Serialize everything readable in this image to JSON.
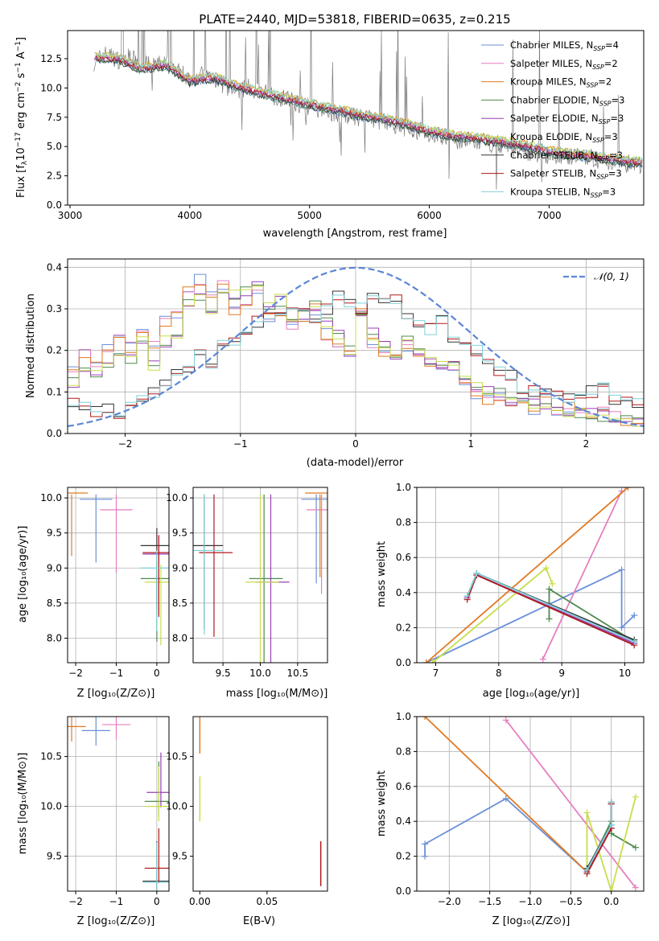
{
  "title": "PLATE=2440, MJD=53818, FIBERID=0635, z=0.215",
  "models": [
    {
      "name": "Chabrier MILES",
      "nssp": "4",
      "color": "#6a8fd8"
    },
    {
      "name": "Salpeter MILES",
      "nssp": "2",
      "color": "#e57fbf"
    },
    {
      "name": "Kroupa MILES",
      "nssp": "2",
      "color": "#e07a22"
    },
    {
      "name": "Chabrier ELODIE",
      "nssp": "3",
      "color": "#4f8a4f"
    },
    {
      "name": "Salpeter ELODIE",
      "nssp": "3",
      "color": "#9a3fb3"
    },
    {
      "name": "Kroupa ELODIE",
      "nssp": "3",
      "color": "#c8dd4a"
    },
    {
      "name": "Chabrier STELIB",
      "nssp": "3",
      "color": "#333333"
    },
    {
      "name": "Salpeter STELIB",
      "nssp": "3",
      "color": "#b01a1a"
    },
    {
      "name": "Kroupa STELIB",
      "nssp": "3",
      "color": "#7fd0d8"
    }
  ],
  "panels": {
    "spectrum": {
      "xlabel": "wavelength [Angstrom, rest frame]",
      "ylabel_main": "Flux [f",
      "ylabel_rest": "10",
      "ylabel_exp": "−17",
      "ylabel_units": " erg cm",
      "xticks": [
        "3000",
        "4000",
        "5000",
        "6000",
        "7000"
      ],
      "yticks": [
        "0.0",
        "2.5",
        "5.0",
        "7.5",
        "10.0",
        "12.5"
      ]
    },
    "residuals": {
      "xlabel": "(data-model)/error",
      "ylabel": "Normed distribution",
      "legend": "𝒩(0, 1)",
      "xticks": [
        "−2",
        "−1",
        "0",
        "1",
        "2"
      ],
      "yticks": [
        "0.0",
        "0.1",
        "0.2",
        "0.3",
        "0.4"
      ]
    },
    "age_vs_z": {
      "xlabel": "Z [log₁₀(Z/Z⊙)]",
      "ylabel": "age  [log₁₀(age/yr)]",
      "xticks": [
        "−2",
        "−1",
        "0"
      ],
      "yticks": [
        "8.0",
        "8.5",
        "9.0",
        "9.5",
        "10.0"
      ]
    },
    "age_vs_mass": {
      "xlabel": "mass [log₁₀(M/M⊙)]",
      "xticks": [
        "9.5",
        "10.0",
        "10.5"
      ],
      "yticks": [
        "8.0",
        "8.5",
        "9.0",
        "9.5",
        "10.0"
      ]
    },
    "weight_vs_age": {
      "xlabel": "age  [log₁₀(age/yr)]",
      "ylabel": "mass weight",
      "xticks": [
        "7",
        "8",
        "9",
        "10"
      ],
      "yticks": [
        "0.0",
        "0.2",
        "0.4",
        "0.6",
        "0.8",
        "1.0"
      ]
    },
    "mass_vs_z": {
      "xlabel": "Z [log₁₀(Z/Z⊙)]",
      "ylabel": "mass [log₁₀(M/M⊙)]",
      "xticks": [
        "−2",
        "−1",
        "0"
      ],
      "yticks": [
        "9.5",
        "10.0",
        "10.5"
      ]
    },
    "mass_vs_ebv": {
      "xlabel": "E(B-V)",
      "xticks": [
        "0.00",
        "0.05"
      ],
      "yticks": [
        "9.5",
        "10.0",
        "10.5"
      ]
    },
    "weight_vs_z": {
      "xlabel": "Z [log₁₀(Z/Z⊙)]",
      "ylabel": "mass weight",
      "xticks": [
        "−2.0",
        "−1.5",
        "−1.0",
        "−0.5",
        "0.0"
      ],
      "yticks": [
        "0.0",
        "0.2",
        "0.4",
        "0.6",
        "0.8",
        "1.0"
      ]
    }
  },
  "chart_data": [
    {
      "type": "line",
      "title": "PLATE=2440, MJD=53818, FIBERID=0635, z=0.215",
      "xlabel": "wavelength [Angstrom, rest frame]",
      "ylabel": "Flux [f_λ 10^-17 erg cm^-2 s^-1 A^-1]",
      "xlim": [
        2980,
        7790
      ],
      "ylim": [
        0,
        14.9
      ],
      "grid": false,
      "legend": "top-right",
      "data_x": [
        3200,
        3300,
        3400,
        3500,
        3600,
        3700,
        3800,
        3900,
        4000,
        4100,
        4200,
        4300,
        4400,
        4500,
        4600,
        4700,
        4800,
        4900,
        5000,
        5200,
        5400,
        5600,
        5800,
        6000,
        6200,
        6400,
        6600,
        6800,
        7000,
        7200,
        7400,
        7600,
        7780
      ],
      "data_y": [
        12.2,
        12.9,
        12.4,
        12.6,
        12.0,
        11.9,
        12.1,
        11.5,
        10.8,
        11.1,
        10.9,
        10.1,
        9.8,
        10.0,
        9.7,
        9.3,
        9.1,
        8.7,
        8.4,
        7.9,
        7.5,
        7.2,
        6.6,
        6.1,
        5.6,
        5.4,
        5.2,
        4.6,
        4.2,
        4.2,
        3.9,
        3.6,
        3.4
      ],
      "model_x": [
        3200,
        3400,
        3600,
        3800,
        4000,
        4200,
        4400,
        4600,
        4800,
        5000,
        5200,
        5400,
        5600,
        5800,
        6000,
        6200,
        6400,
        6600,
        6800,
        7000,
        7200,
        7400,
        7600,
        7780
      ],
      "model_y": [
        12.6,
        12.5,
        11.6,
        12.0,
        10.6,
        10.9,
        10.1,
        9.6,
        9.1,
        8.6,
        8.2,
        7.7,
        7.4,
        6.9,
        6.3,
        5.9,
        5.7,
        5.4,
        5.1,
        4.6,
        4.3,
        4.1,
        3.8,
        3.6
      ]
    },
    {
      "type": "line",
      "xlabel": "(data-model)/error",
      "ylabel": "Normed distribution",
      "xlim": [
        -2.5,
        2.5
      ],
      "ylim": [
        0,
        0.42
      ],
      "grid": true,
      "legend": "top-right",
      "gaussian": {
        "name": "𝒩(0, 1)",
        "mu": 0,
        "sigma": 1
      },
      "bins": [
        -2.5,
        -2.4,
        -2.3,
        -2.2,
        -2.1,
        -2.0,
        -1.9,
        -1.8,
        -1.7,
        -1.6,
        -1.5,
        -1.4,
        -1.3,
        -1.2,
        -1.1,
        -1.0,
        -0.9,
        -0.8,
        -0.7,
        -0.6,
        -0.5,
        -0.4,
        -0.3,
        -0.2,
        -0.1,
        0.0,
        0.1,
        0.2,
        0.3,
        0.4,
        0.5,
        0.6,
        0.7,
        0.8,
        0.9,
        1.0,
        1.1,
        1.2,
        1.3,
        1.4,
        1.5,
        1.6,
        1.7,
        1.8,
        1.9,
        2.0,
        2.1,
        2.2,
        2.3,
        2.4
      ],
      "series": [
        {
          "name": "MILES",
          "values": [
            0.15,
            0.19,
            0.17,
            0.2,
            0.23,
            0.21,
            0.25,
            0.22,
            0.27,
            0.28,
            0.34,
            0.37,
            0.33,
            0.36,
            0.3,
            0.31,
            0.35,
            0.28,
            0.29,
            0.26,
            0.27,
            0.3,
            0.24,
            0.21,
            0.19,
            0.29,
            0.22,
            0.2,
            0.18,
            0.21,
            0.19,
            0.17,
            0.15,
            0.16,
            0.11,
            0.09,
            0.08,
            0.09,
            0.08,
            0.07,
            0.06,
            0.08,
            0.05,
            0.06,
            0.05,
            0.04,
            0.05,
            0.04,
            0.03,
            0.02
          ]
        },
        {
          "name": "ELODIE",
          "values": [
            0.12,
            0.16,
            0.14,
            0.17,
            0.19,
            0.18,
            0.23,
            0.16,
            0.22,
            0.24,
            0.31,
            0.33,
            0.3,
            0.35,
            0.33,
            0.34,
            0.36,
            0.31,
            0.32,
            0.28,
            0.29,
            0.31,
            0.27,
            0.24,
            0.2,
            0.28,
            0.24,
            0.21,
            0.19,
            0.22,
            0.2,
            0.18,
            0.17,
            0.17,
            0.13,
            0.11,
            0.1,
            0.1,
            0.08,
            0.09,
            0.07,
            0.06,
            0.06,
            0.05,
            0.05,
            0.05,
            0.04,
            0.04,
            0.03,
            0.03
          ]
        },
        {
          "name": "STELIB",
          "values": [
            0.07,
            0.07,
            0.05,
            0.06,
            0.05,
            0.07,
            0.09,
            0.1,
            0.12,
            0.15,
            0.16,
            0.19,
            0.16,
            0.21,
            0.22,
            0.25,
            0.27,
            0.28,
            0.3,
            0.31,
            0.29,
            0.27,
            0.3,
            0.33,
            0.32,
            0.3,
            0.33,
            0.31,
            0.32,
            0.29,
            0.27,
            0.25,
            0.27,
            0.23,
            0.22,
            0.2,
            0.17,
            0.15,
            0.14,
            0.11,
            0.1,
            0.1,
            0.09,
            0.09,
            0.08,
            0.1,
            0.11,
            0.08,
            0.08,
            0.07
          ]
        }
      ]
    },
    {
      "type": "scatter",
      "xlabel": "Z [log10(Z/Z_sun)]",
      "ylabel": "age [log10(age/yr)]",
      "xlim": [
        -2.2,
        0.3
      ],
      "ylim": [
        7.65,
        10.15
      ],
      "points": [
        {
          "model": "Chabrier MILES",
          "x": -1.5,
          "y": 9.98
        },
        {
          "model": "Salpeter MILES",
          "x": -1.0,
          "y": 9.83
        },
        {
          "model": "Kroupa MILES",
          "x": -2.1,
          "y": 10.07
        },
        {
          "model": "Chabrier ELODIE",
          "x": 0.0,
          "y": 8.85
        },
        {
          "model": "Salpeter ELODIE",
          "x": 0.05,
          "y": 9.2
        },
        {
          "model": "Kroupa ELODIE",
          "x": 0.1,
          "y": 8.8
        },
        {
          "model": "Chabrier STELIB",
          "x": 0.0,
          "y": 9.32
        },
        {
          "model": "Salpeter STELIB",
          "x": 0.05,
          "y": 9.22
        },
        {
          "model": "Kroupa STELIB",
          "x": 0.0,
          "y": 9.0
        }
      ]
    },
    {
      "type": "scatter",
      "xlabel": "mass [log10(M/M_sun)]",
      "ylabel": "age [log10(age/yr)]",
      "xlim": [
        9.1,
        10.9
      ],
      "ylim": [
        7.65,
        10.15
      ],
      "points": [
        {
          "model": "Chabrier MILES",
          "x": 10.75,
          "y": 9.98
        },
        {
          "model": "Salpeter MILES",
          "x": 10.82,
          "y": 9.83
        },
        {
          "model": "Kroupa MILES",
          "x": 10.8,
          "y": 10.07
        },
        {
          "model": "Chabrier ELODIE",
          "x": 10.05,
          "y": 8.85
        },
        {
          "model": "Salpeter ELODIE",
          "x": 10.14,
          "y": 8.8
        },
        {
          "model": "Kroupa ELODIE",
          "x": 10.0,
          "y": 8.8
        },
        {
          "model": "Chabrier STELIB",
          "x": 9.25,
          "y": 9.32
        },
        {
          "model": "Salpeter STELIB",
          "x": 9.38,
          "y": 9.22
        },
        {
          "model": "Kroupa STELIB",
          "x": 9.25,
          "y": 9.25
        }
      ]
    },
    {
      "type": "line",
      "xlabel": "age [log10(age/yr)]",
      "ylabel": "mass weight",
      "xlim": [
        6.7,
        10.3
      ],
      "ylim": [
        0,
        1
      ],
      "grid": true,
      "series": [
        {
          "name": "Chabrier MILES",
          "x": [
            10.15,
            9.95,
            9.95,
            6.85
          ],
          "y": [
            0.27,
            0.2,
            0.53,
            0.0
          ]
        },
        {
          "name": "Salpeter MILES",
          "x": [
            8.7,
            9.95
          ],
          "y": [
            0.02,
            0.98
          ]
        },
        {
          "name": "Kroupa MILES",
          "x": [
            6.85,
            10.05
          ],
          "y": [
            0.0,
            1.0
          ]
        },
        {
          "name": "Chabrier ELODIE",
          "x": [
            8.8,
            8.8,
            10.15
          ],
          "y": [
            0.25,
            0.42,
            0.12
          ]
        },
        {
          "name": "Salpeter ELODIE",
          "x": [
            7.5,
            7.65,
            10.15
          ],
          "y": [
            0.37,
            0.5,
            0.11
          ]
        },
        {
          "name": "Kroupa ELODIE",
          "x": [
            6.95,
            8.75,
            8.85
          ],
          "y": [
            0.0,
            0.54,
            0.45
          ]
        },
        {
          "name": "Chabrier STELIB",
          "x": [
            7.5,
            7.65,
            10.15
          ],
          "y": [
            0.38,
            0.51,
            0.13
          ]
        },
        {
          "name": "Salpeter STELIB",
          "x": [
            7.5,
            7.65,
            10.15
          ],
          "y": [
            0.36,
            0.5,
            0.1
          ]
        },
        {
          "name": "Kroupa STELIB",
          "x": [
            7.5,
            7.65,
            10.15
          ],
          "y": [
            0.38,
            0.51,
            0.12
          ]
        }
      ]
    },
    {
      "type": "scatter",
      "xlabel": "Z [log10(Z/Z_sun)]",
      "ylabel": "mass [log10(M/M_sun)]",
      "xlim": [
        -2.2,
        0.3
      ],
      "ylim": [
        9.15,
        10.9
      ],
      "points": [
        {
          "model": "Chabrier MILES",
          "x": -1.5,
          "y": 10.76
        },
        {
          "model": "Salpeter MILES",
          "x": -1.0,
          "y": 10.82
        },
        {
          "model": "Kroupa MILES",
          "x": -2.1,
          "y": 10.8
        },
        {
          "model": "Chabrier ELODIE",
          "x": 0.05,
          "y": 10.05
        },
        {
          "model": "Salpeter ELODIE",
          "x": 0.1,
          "y": 10.14
        },
        {
          "model": "Kroupa ELODIE",
          "x": 0.05,
          "y": 10.0
        },
        {
          "model": "Chabrier STELIB",
          "x": 0.0,
          "y": 9.25
        },
        {
          "model": "Salpeter STELIB",
          "x": 0.05,
          "y": 9.38
        },
        {
          "model": "Kroupa STELIB",
          "x": 0.0,
          "y": 9.24
        }
      ]
    },
    {
      "type": "scatter",
      "xlabel": "E(B-V)",
      "ylabel": "mass [log10(M/M_sun)]",
      "xlim": [
        -0.005,
        0.095
      ],
      "ylim": [
        9.15,
        10.9
      ],
      "points": [
        {
          "model": "MILES",
          "x": 0.0,
          "y": 10.78
        },
        {
          "model": "ELODIE",
          "x": 0.0,
          "y": 10.1
        },
        {
          "model": "STELIB",
          "x": 0.09,
          "y": 9.45
        }
      ]
    },
    {
      "type": "line",
      "xlabel": "Z [log10(Z/Z_sun)]",
      "ylabel": "mass weight",
      "xlim": [
        -2.4,
        0.4
      ],
      "ylim": [
        0,
        1
      ],
      "grid": true,
      "series": [
        {
          "name": "Chabrier MILES",
          "x": [
            -2.3,
            -2.3,
            -1.3,
            -0.3
          ],
          "y": [
            0.2,
            0.27,
            0.53,
            0.11
          ]
        },
        {
          "name": "Salpeter MILES",
          "x": [
            -1.3,
            0.3
          ],
          "y": [
            0.98,
            0.02
          ]
        },
        {
          "name": "Kroupa MILES",
          "x": [
            -2.3,
            -0.3
          ],
          "y": [
            1.0,
            0.11
          ]
        },
        {
          "name": "Chabrier ELODIE",
          "x": [
            -0.3,
            0.0,
            0.0,
            0.3
          ],
          "y": [
            0.12,
            0.4,
            0.33,
            0.25
          ]
        },
        {
          "name": "Salpeter ELODIE",
          "x": [
            -0.3,
            0.0,
            0.0
          ],
          "y": [
            0.11,
            0.36,
            0.5
          ]
        },
        {
          "name": "Kroupa ELODIE",
          "x": [
            -0.3,
            -0.3,
            0.0,
            0.3
          ],
          "y": [
            0.1,
            0.45,
            0.0,
            0.54
          ]
        },
        {
          "name": "Chabrier STELIB",
          "x": [
            -0.3,
            0.0,
            0.0
          ],
          "y": [
            0.13,
            0.38,
            0.51
          ]
        },
        {
          "name": "Salpeter STELIB",
          "x": [
            -0.3,
            0.0,
            0.0
          ],
          "y": [
            0.1,
            0.36,
            0.5
          ]
        },
        {
          "name": "Kroupa STELIB",
          "x": [
            -0.3,
            0.0,
            0.0
          ],
          "y": [
            0.12,
            0.38,
            0.51
          ]
        }
      ]
    }
  ]
}
